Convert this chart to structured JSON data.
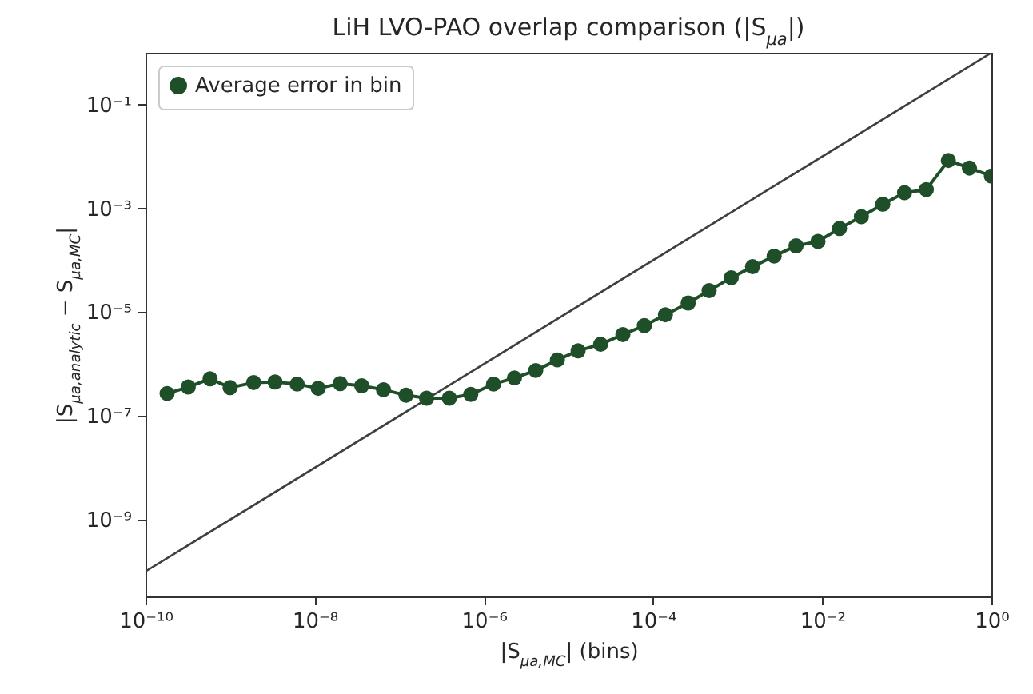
{
  "chart_data": {
    "type": "line",
    "title": "LiH LVO-PAO overlap comparison (|S$_{μa}$|)",
    "xlabel": "|S$_{μa,MC}$| (bins)",
    "ylabel": "|S$_{μa,analytic}$ − S$_{μa,MC}$|",
    "log": "xy",
    "xlim": [
      1e-10,
      1
    ],
    "ylim": [
      3.3e-11,
      1
    ],
    "xticks": [
      {
        "value": 1e-10,
        "label": "10⁻¹⁰"
      },
      {
        "value": 1e-08,
        "label": "10⁻⁸"
      },
      {
        "value": 1e-06,
        "label": "10⁻⁶"
      },
      {
        "value": 0.0001,
        "label": "10⁻⁴"
      },
      {
        "value": 0.01,
        "label": "10⁻²"
      },
      {
        "value": 1,
        "label": "10⁰"
      }
    ],
    "yticks": [
      {
        "value": 1e-09,
        "label": "10⁻⁹"
      },
      {
        "value": 1e-07,
        "label": "10⁻⁷"
      },
      {
        "value": 1e-05,
        "label": "10⁻⁵"
      },
      {
        "value": 0.001,
        "label": "10⁻³"
      },
      {
        "value": 0.1,
        "label": "10⁻¹"
      }
    ],
    "grid": false,
    "legend": "top left",
    "marker": "circle",
    "line_style": "solid",
    "series": [
      {
        "type": "line",
        "marker": "none",
        "color": "#3f3f3f",
        "x": [
          1e-10,
          1
        ],
        "values": [
          1e-10,
          1
        ]
      },
      {
        "name": "Average error in bin",
        "color": "#1f4f28",
        "x": [
          1.8e-10,
          3.2e-10,
          5.8e-10,
          1e-09,
          1.9e-09,
          3.4e-09,
          6.2e-09,
          1.1e-08,
          2e-08,
          3.6e-08,
          6.5e-08,
          1.2e-07,
          2.1e-07,
          3.9e-07,
          7e-07,
          1.3e-06,
          2.3e-06,
          4.1e-06,
          7.4e-06,
          1.3e-05,
          2.4e-05,
          4.4e-05,
          7.9e-05,
          0.00014,
          0.00026,
          0.00046,
          0.00084,
          0.0015,
          0.0027,
          0.0049,
          0.0089,
          0.016,
          0.029,
          0.052,
          0.094,
          0.17,
          0.31,
          0.55,
          1
        ],
        "values": [
          2.7e-07,
          3.6e-07,
          5.2e-07,
          3.5e-07,
          4.4e-07,
          4.5e-07,
          4.1e-07,
          3.4e-07,
          4.2e-07,
          3.8e-07,
          3.2e-07,
          2.5e-07,
          2.2e-07,
          2.2e-07,
          2.6e-07,
          4.1e-07,
          5.4e-07,
          7.5e-07,
          1.2e-06,
          1.8e-06,
          2.4e-06,
          3.7e-06,
          5.5e-06,
          8.9e-06,
          1.5e-05,
          2.6e-05,
          4.6e-05,
          7.5e-05,
          0.00012,
          0.00019,
          0.00023,
          0.00041,
          0.00069,
          0.0012,
          0.002,
          0.0023,
          0.0084,
          0.006,
          0.0042
        ]
      }
    ]
  }
}
